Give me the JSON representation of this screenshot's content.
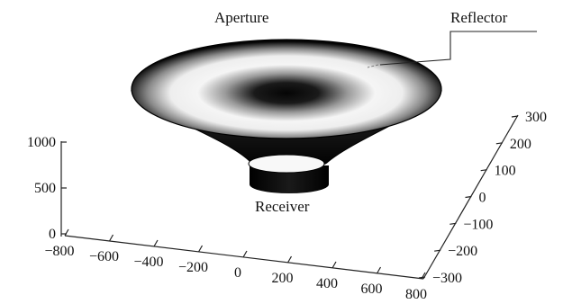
{
  "labels": {
    "aperture": "Aperture",
    "reflector": "Reflector",
    "receiver": "Receiver"
  },
  "axes": {
    "z_ticks": [
      "0",
      "500",
      "1000"
    ],
    "x_ticks": [
      "−800",
      "−600",
      "−400",
      "−200",
      "0",
      "200",
      "400",
      "600",
      "800"
    ],
    "y_ticks": [
      "−300",
      "−200",
      "−100",
      "0",
      "100",
      "200",
      "300"
    ]
  },
  "colors": {
    "surface_dark": "#000000",
    "surface_light": "#f4f4f4",
    "axis": "#222222"
  }
}
